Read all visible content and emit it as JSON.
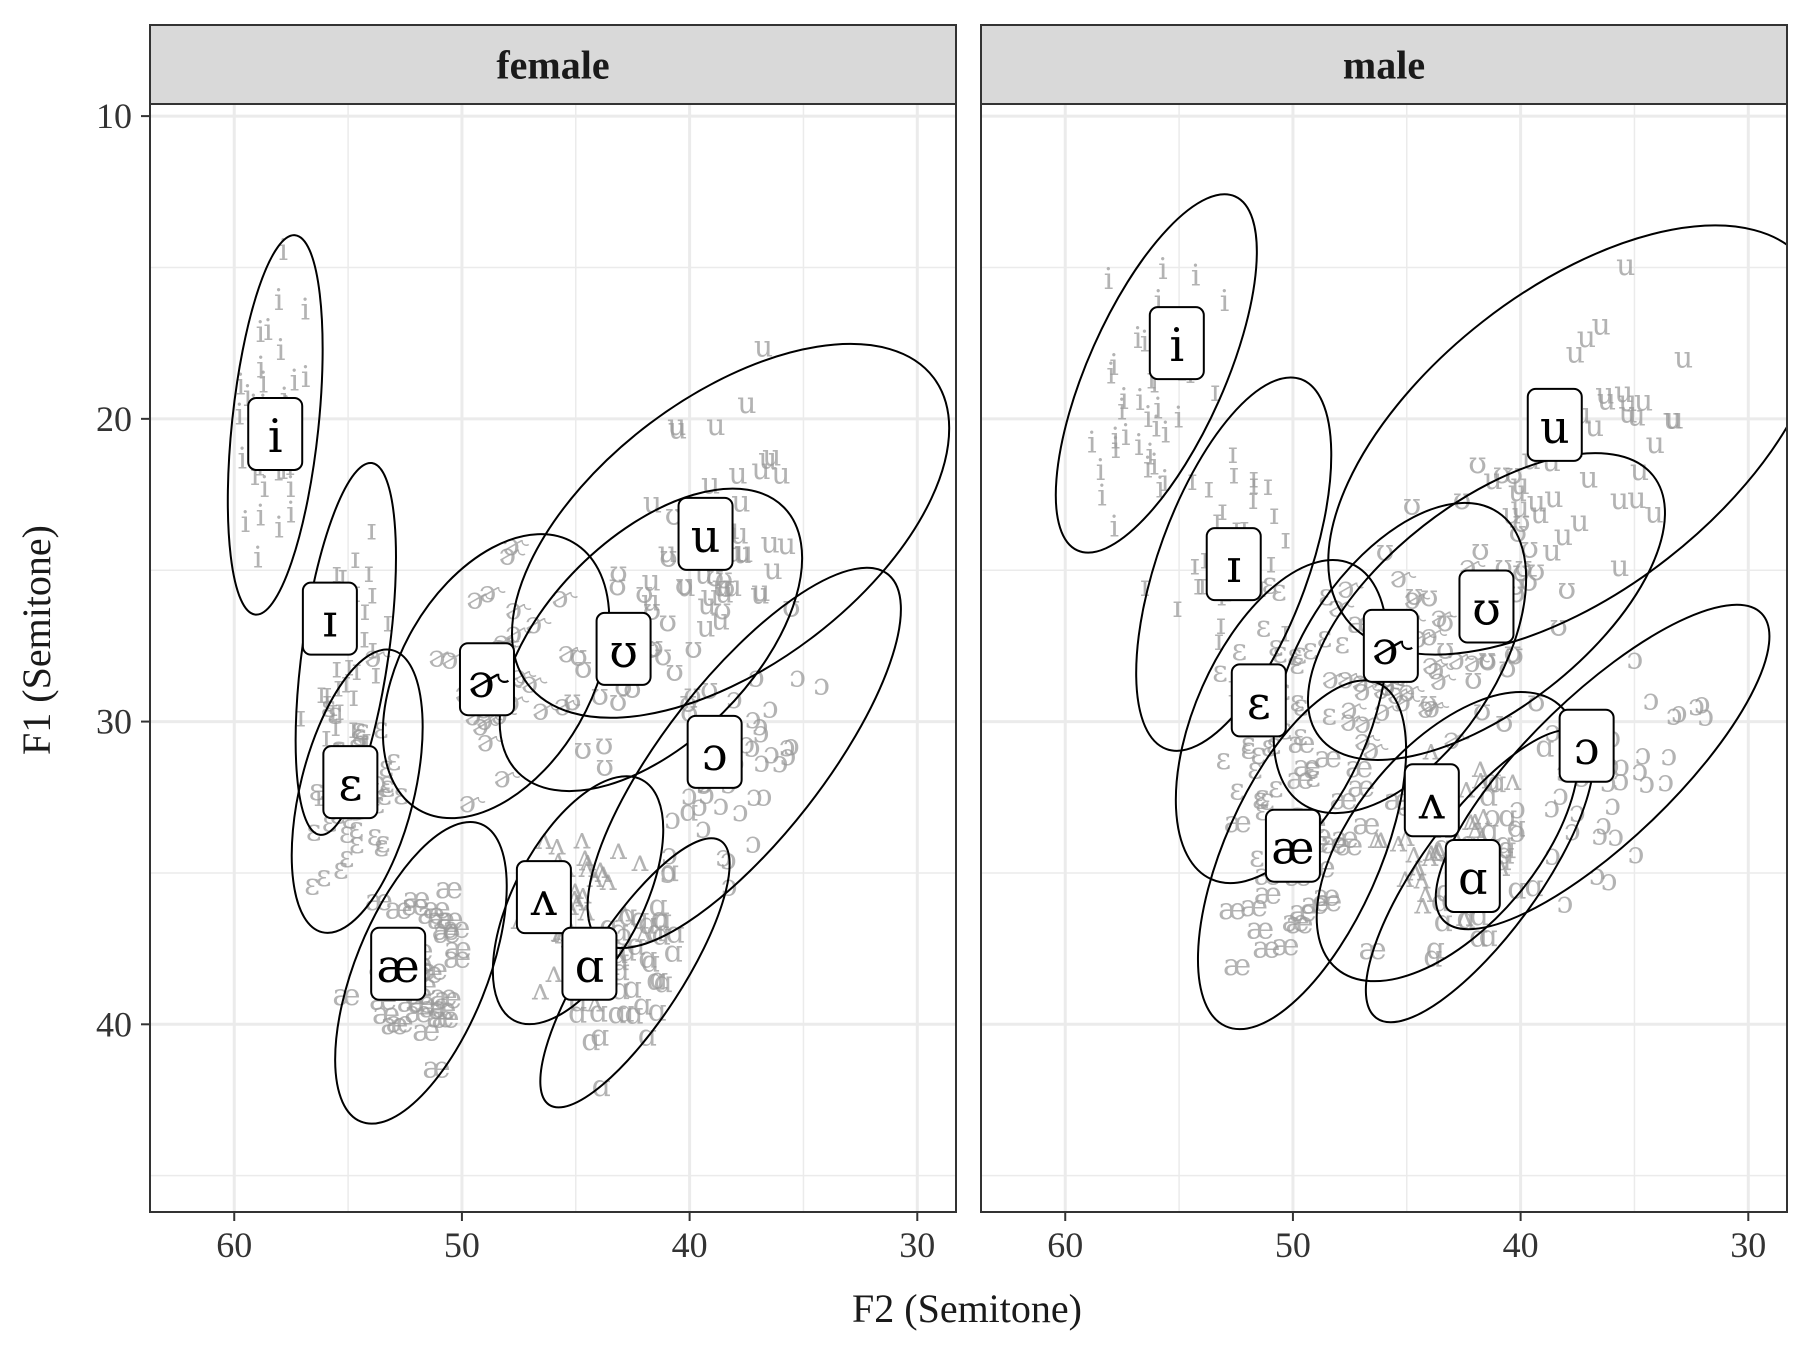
{
  "chart_data": {
    "type": "scatter",
    "xlabel": "F2 (Semitone)",
    "ylabel": "F1 (Semitone)",
    "x_reversed": true,
    "y_reversed": true,
    "xlim": [
      63.7,
      28.3
    ],
    "ylim": [
      9.6,
      46.2
    ],
    "xticks": [
      60,
      50,
      40,
      30
    ],
    "yticks": [
      10,
      20,
      30,
      40
    ],
    "grid": true,
    "legend": "none",
    "colors": {
      "points": "#999999",
      "ellipse": "#000000",
      "strip": "#d9d9d9",
      "grid": "#ebebeb"
    },
    "panels": [
      {
        "name": "female",
        "vowels": [
          {
            "label": "i",
            "cx": 58.2,
            "cy": 20.2,
            "rx": 1.9,
            "ry": 6.3,
            "angle": 6,
            "lx": 58.2,
            "ly": 20.5,
            "spread": [
              0.8,
              2.2
            ]
          },
          {
            "label": "ɪ",
            "cx": 55.1,
            "cy": 27.6,
            "rx": 1.9,
            "ry": 6.2,
            "angle": 8,
            "lx": 55.8,
            "ly": 26.6,
            "spread": [
              0.8,
              2.0
            ]
          },
          {
            "label": "ɛ",
            "cx": 54.6,
            "cy": 32.3,
            "rx": 2.5,
            "ry": 4.8,
            "angle": 14,
            "lx": 54.9,
            "ly": 32.0,
            "spread": [
              1.0,
              1.6
            ]
          },
          {
            "label": "æ",
            "cx": 51.8,
            "cy": 38.3,
            "rx": 2.9,
            "ry": 5.3,
            "angle": 22,
            "lx": 52.8,
            "ly": 38.0,
            "spread": [
              1.2,
              1.8
            ]
          },
          {
            "label": "ɚ",
            "cx": 48.5,
            "cy": 28.5,
            "rx": 4.2,
            "ry": 5.1,
            "angle": 30,
            "lx": 48.9,
            "ly": 28.6,
            "spread": [
              1.4,
              1.8
            ]
          },
          {
            "label": "ʌ",
            "cx": 44.9,
            "cy": 35.9,
            "rx": 2.8,
            "ry": 4.5,
            "angle": 28,
            "lx": 46.4,
            "ly": 35.8,
            "spread": [
              1.1,
              1.5
            ]
          },
          {
            "label": "ɑ",
            "cx": 42.4,
            "cy": 38.3,
            "rx": 2.1,
            "ry": 5.2,
            "angle": 33,
            "lx": 44.4,
            "ly": 38.0,
            "spread": [
              0.9,
              1.7
            ]
          },
          {
            "label": "ʊ",
            "cx": 41.7,
            "cy": 27.3,
            "rx": 4.5,
            "ry": 6.2,
            "angle": 45,
            "lx": 42.9,
            "ly": 27.6,
            "spread": [
              1.6,
              2.0
            ]
          },
          {
            "label": "u",
            "cx": 38.2,
            "cy": 23.7,
            "rx": 5.9,
            "ry": 8.4,
            "angle": 53,
            "lx": 39.3,
            "ly": 23.8,
            "spread": [
              2.0,
              2.6
            ]
          },
          {
            "label": "ɔ",
            "cx": 37.6,
            "cy": 31.2,
            "rx": 3.5,
            "ry": 7.7,
            "angle": 38,
            "lx": 38.9,
            "ly": 31.0,
            "spread": [
              1.3,
              2.4
            ]
          }
        ]
      },
      {
        "name": "male",
        "vowels": [
          {
            "label": "i",
            "cx": 56.0,
            "cy": 18.5,
            "rx": 3.0,
            "ry": 6.4,
            "angle": 24,
            "lx": 55.1,
            "ly": 17.5,
            "spread": [
              1.2,
              2.2
            ]
          },
          {
            "label": "ɪ",
            "cx": 52.6,
            "cy": 24.8,
            "rx": 3.3,
            "ry": 6.5,
            "angle": 20,
            "lx": 52.6,
            "ly": 24.8,
            "spread": [
              1.2,
              2.0
            ]
          },
          {
            "label": "ɛ",
            "cx": 50.5,
            "cy": 30.0,
            "rx": 3.8,
            "ry": 5.7,
            "angle": 24,
            "lx": 51.5,
            "ly": 29.3,
            "spread": [
              1.4,
              1.9
            ]
          },
          {
            "label": "æ",
            "cx": 49.6,
            "cy": 34.4,
            "rx": 3.4,
            "ry": 6.2,
            "angle": 24,
            "lx": 50.0,
            "ly": 34.1,
            "spread": [
              1.3,
              2.0
            ]
          },
          {
            "label": "ɚ",
            "cx": 45.3,
            "cy": 27.9,
            "rx": 4.2,
            "ry": 5.8,
            "angle": 34,
            "lx": 45.7,
            "ly": 27.5,
            "spread": [
              1.5,
              1.9
            ]
          },
          {
            "label": "ʌ",
            "cx": 43.2,
            "cy": 33.8,
            "rx": 4.0,
            "ry": 5.7,
            "angle": 40,
            "lx": 43.9,
            "ly": 32.6,
            "spread": [
              1.4,
              1.8
            ]
          },
          {
            "label": "ɑ",
            "cx": 41.8,
            "cy": 35.1,
            "rx": 2.6,
            "ry": 5.8,
            "angle": 36,
            "lx": 42.1,
            "ly": 35.1,
            "spread": [
              1.0,
              1.8
            ]
          },
          {
            "label": "ʊ",
            "cx": 41.5,
            "cy": 26.2,
            "rx": 4.5,
            "ry": 7.0,
            "angle": 52,
            "lx": 41.5,
            "ly": 26.2,
            "spread": [
              1.6,
              2.2
            ]
          },
          {
            "label": "u",
            "cx": 37.6,
            "cy": 20.7,
            "rx": 6.6,
            "ry": 9.6,
            "angle": 52,
            "lx": 38.5,
            "ly": 20.2,
            "spread": [
              2.2,
              2.8
            ]
          },
          {
            "label": "ɔ",
            "cx": 36.4,
            "cy": 31.5,
            "rx": 3.2,
            "ry": 7.3,
            "angle": 46,
            "lx": 37.1,
            "ly": 30.8,
            "spread": [
              1.3,
              2.4
            ]
          }
        ]
      }
    ]
  }
}
